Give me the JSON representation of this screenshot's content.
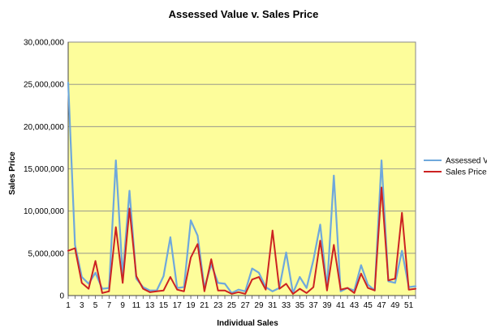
{
  "chart_data": {
    "type": "line",
    "title": "Assessed Value v. Sales Price",
    "xlabel": "Individual Sales",
    "ylabel": "Sales Price",
    "x": [
      1,
      2,
      3,
      4,
      5,
      6,
      7,
      8,
      9,
      10,
      11,
      12,
      13,
      14,
      15,
      16,
      17,
      18,
      19,
      20,
      21,
      22,
      23,
      24,
      25,
      26,
      27,
      28,
      29,
      30,
      31,
      32,
      33,
      34,
      35,
      36,
      37,
      38,
      39,
      40,
      41,
      42,
      43,
      44,
      45,
      46,
      47,
      48,
      49,
      50,
      51,
      52
    ],
    "x_tick_labels": [
      "1",
      "3",
      "5",
      "7",
      "9",
      "11",
      "13",
      "15",
      "17",
      "19",
      "21",
      "23",
      "25",
      "27",
      "29",
      "31",
      "33",
      "35",
      "37",
      "39",
      "41",
      "43",
      "45",
      "47",
      "49",
      "51"
    ],
    "ylim": [
      0,
      30000000
    ],
    "y_ticks": [
      0,
      5000000,
      10000000,
      15000000,
      20000000,
      25000000,
      30000000
    ],
    "y_tick_labels": [
      "0",
      "5,000,000",
      "10,000,000",
      "15,000,000",
      "20,000,000",
      "25,000,000",
      "30,000,000"
    ],
    "grid": true,
    "legend_position": "right",
    "plot_background": "#fdfd9b",
    "series": [
      {
        "name": "Assessed Values",
        "color": "#6fa8dc",
        "values": [
          25200000,
          6000000,
          2200000,
          1400000,
          2700000,
          800000,
          900000,
          16000000,
          2300000,
          12400000,
          2000000,
          1000000,
          600000,
          600000,
          2300000,
          6900000,
          900000,
          1000000,
          8900000,
          7100000,
          900000,
          3700000,
          1500000,
          1400000,
          300000,
          700000,
          500000,
          3200000,
          2700000,
          1000000,
          500000,
          900000,
          5100000,
          300000,
          2200000,
          900000,
          4200000,
          8400000,
          900000,
          14200000,
          500000,
          900000,
          600000,
          3600000,
          1300000,
          600000,
          16000000,
          1700000,
          1500000,
          5300000,
          1000000,
          1100000
        ]
      },
      {
        "name": "Sales Price",
        "color": "#cc2222",
        "values": [
          5300000,
          5600000,
          1500000,
          800000,
          4100000,
          300000,
          500000,
          8100000,
          1500000,
          10300000,
          2300000,
          800000,
          400000,
          500000,
          600000,
          2200000,
          700000,
          500000,
          4500000,
          6100000,
          500000,
          4300000,
          600000,
          600000,
          200000,
          400000,
          200000,
          1900000,
          2200000,
          700000,
          7700000,
          800000,
          1400000,
          200000,
          800000,
          300000,
          1000000,
          6500000,
          600000,
          6000000,
          700000,
          900000,
          300000,
          2600000,
          900000,
          600000,
          12800000,
          1800000,
          2000000,
          9800000,
          700000,
          800000
        ]
      }
    ]
  }
}
